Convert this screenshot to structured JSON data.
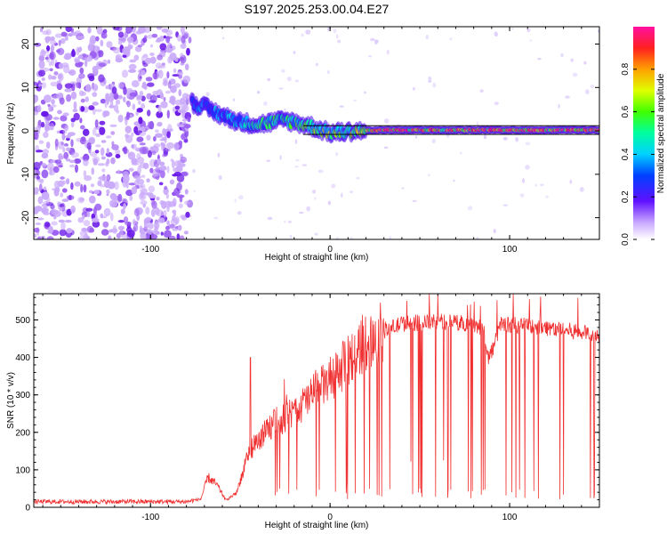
{
  "title": "S197.2025.253.00.04.E27",
  "colors": {
    "snr_line": "#f03030",
    "reference_line": "#000000",
    "noise": "#a070f0"
  },
  "chart_data": [
    {
      "type": "heatmap",
      "name": "spectrogram",
      "xlabel": "Height of straight line (km)",
      "ylabel": "Frequency (Hz)",
      "xlim": [
        -165,
        150
      ],
      "ylim": [
        -25,
        24
      ],
      "xticks": [
        -100,
        0,
        100
      ],
      "xtick_labels": [
        "-100",
        "0",
        "100"
      ],
      "yticks": [
        -20,
        -10,
        0,
        10,
        20
      ],
      "ytick_labels": [
        "-20",
        "-10",
        "0",
        "10",
        "20"
      ],
      "reference_lines_hz": [
        1.2,
        -0.8
      ],
      "colorbar": {
        "label": "Normalized spectral amplitude",
        "range": [
          0,
          1
        ],
        "ticks": [
          0,
          0.2,
          0.4,
          0.6,
          0.8
        ],
        "tick_labels": [
          "0.0",
          "0.2",
          "0.4",
          "0.6",
          "0.8"
        ]
      },
      "signal_track": [
        {
          "x": -77,
          "freq": 6.5,
          "amp": 0.35
        },
        {
          "x": -70,
          "freq": 5.5,
          "amp": 0.4
        },
        {
          "x": -60,
          "freq": 3.5,
          "amp": 0.45
        },
        {
          "x": -50,
          "freq": 2.0,
          "amp": 0.5
        },
        {
          "x": -40,
          "freq": 1.5,
          "amp": 0.55
        },
        {
          "x": -25,
          "freq": 2.5,
          "amp": 0.6
        },
        {
          "x": -10,
          "freq": 1.0,
          "amp": 0.65
        },
        {
          "x": 0,
          "freq": -0.5,
          "amp": 0.7
        },
        {
          "x": 15,
          "freq": 0.0,
          "amp": 0.8
        },
        {
          "x": 30,
          "freq": 0.2,
          "amp": 0.9
        },
        {
          "x": 60,
          "freq": 0.2,
          "amp": 0.95
        },
        {
          "x": 100,
          "freq": 0.2,
          "amp": 0.95
        },
        {
          "x": 150,
          "freq": 0.2,
          "amp": 0.95
        }
      ]
    },
    {
      "type": "line",
      "name": "snr",
      "xlabel": "Height of straight line (km)",
      "ylabel": "SNR (10 * v/v)",
      "xlim": [
        -165,
        150
      ],
      "ylim": [
        0,
        570
      ],
      "xticks": [
        -100,
        0,
        100
      ],
      "xtick_labels": [
        "-100",
        "0",
        "100"
      ],
      "yticks": [
        0,
        100,
        200,
        300,
        400,
        500
      ],
      "ytick_labels": [
        "0",
        "100",
        "200",
        "300",
        "400",
        "500"
      ],
      "envelope": [
        {
          "x": -165,
          "y": 15
        },
        {
          "x": -80,
          "y": 15
        },
        {
          "x": -72,
          "y": 22
        },
        {
          "x": -68,
          "y": 80
        },
        {
          "x": -63,
          "y": 60
        },
        {
          "x": -58,
          "y": 18
        },
        {
          "x": -52,
          "y": 40
        },
        {
          "x": -45,
          "y": 150
        },
        {
          "x": -38,
          "y": 190
        },
        {
          "x": -30,
          "y": 230
        },
        {
          "x": -20,
          "y": 250
        },
        {
          "x": -10,
          "y": 300
        },
        {
          "x": 0,
          "y": 340
        },
        {
          "x": 10,
          "y": 390
        },
        {
          "x": 20,
          "y": 440
        },
        {
          "x": 30,
          "y": 470
        },
        {
          "x": 40,
          "y": 490
        },
        {
          "x": 60,
          "y": 495
        },
        {
          "x": 80,
          "y": 490
        },
        {
          "x": 86,
          "y": 470
        },
        {
          "x": 88,
          "y": 395
        },
        {
          "x": 92,
          "y": 440
        },
        {
          "x": 95,
          "y": 490
        },
        {
          "x": 120,
          "y": 480
        },
        {
          "x": 150,
          "y": 460
        }
      ]
    }
  ]
}
